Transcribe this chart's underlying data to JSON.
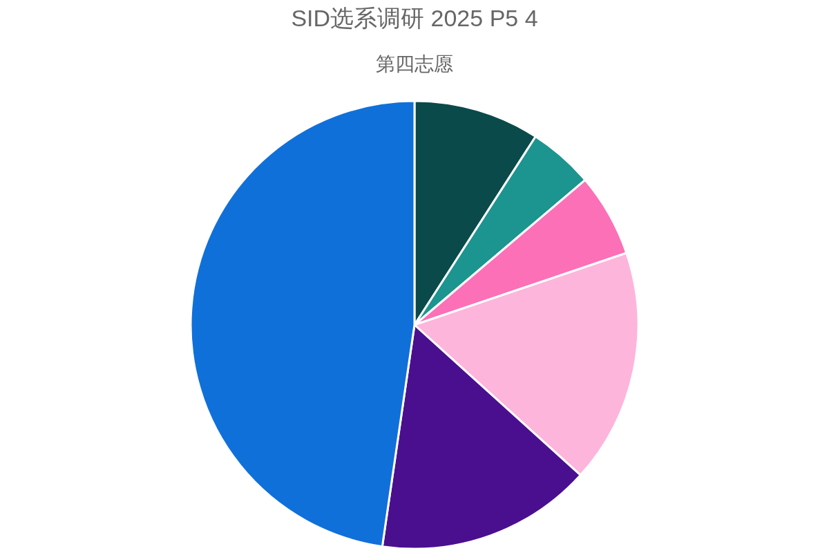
{
  "chart_data": {
    "type": "pie",
    "title": "SID选系调研 2025 P5 4",
    "subtitle": "第四志愿",
    "categories": [
      null,
      null,
      null,
      null,
      null,
      null
    ],
    "values": [
      9.1,
      4.7,
      6.0,
      16.9,
      15.6,
      47.7
    ],
    "colors": [
      "#0b4a4a",
      "#1c9490",
      "#fc70b8",
      "#fdb5dc",
      "#4a0f8f",
      "#1070da"
    ]
  }
}
